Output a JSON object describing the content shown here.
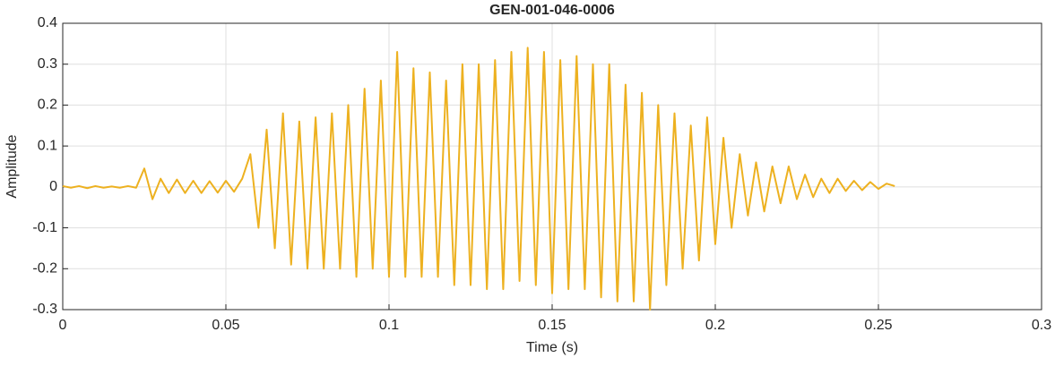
{
  "chart_data": {
    "type": "line",
    "title": "GEN-001-046-0006",
    "x_label": "Time (s)",
    "y_label": "Amplitude",
    "x": [
      0,
      0.0025,
      0.005,
      0.0075,
      0.01,
      0.0125,
      0.015,
      0.0175,
      0.02,
      0.0225,
      0.025,
      0.0275,
      0.03,
      0.0325,
      0.035,
      0.0375,
      0.04,
      0.0425,
      0.045,
      0.0475,
      0.05,
      0.0525,
      0.055,
      0.0575,
      0.06,
      0.0625,
      0.065,
      0.0675,
      0.07,
      0.0725,
      0.075,
      0.0775,
      0.08,
      0.0825,
      0.085,
      0.0875,
      0.09,
      0.0925,
      0.095,
      0.0975,
      0.1,
      0.1025,
      0.105,
      0.1075,
      0.11,
      0.1125,
      0.115,
      0.1175,
      0.12,
      0.1225,
      0.125,
      0.1275,
      0.13,
      0.1325,
      0.135,
      0.1375,
      0.14,
      0.1425,
      0.145,
      0.1475,
      0.15,
      0.1525,
      0.155,
      0.1575,
      0.16,
      0.1625,
      0.165,
      0.1675,
      0.17,
      0.1725,
      0.175,
      0.1775,
      0.18,
      0.1825,
      0.185,
      0.1875,
      0.19,
      0.1925,
      0.195,
      0.1975,
      0.2,
      0.2025,
      0.205,
      0.2075,
      0.21,
      0.2125,
      0.215,
      0.2175,
      0.22,
      0.2225,
      0.225,
      0.2275,
      0.23,
      0.2325,
      0.235,
      0.2375,
      0.24,
      0.2425,
      0.245,
      0.2475,
      0.25,
      0.2525,
      0.255
    ],
    "series": [
      {
        "color": "#EDB120",
        "values": [
          0.002,
          -0.002,
          0.002,
          -0.003,
          0.002,
          -0.002,
          0.001,
          -0.002,
          0.002,
          -0.002,
          0.045,
          -0.03,
          0.02,
          -0.015,
          0.018,
          -0.015,
          0.015,
          -0.015,
          0.014,
          -0.014,
          0.015,
          -0.012,
          0.02,
          0.08,
          -0.1,
          0.14,
          -0.15,
          0.18,
          -0.19,
          0.16,
          -0.2,
          0.17,
          -0.2,
          0.18,
          -0.2,
          0.2,
          -0.22,
          0.24,
          -0.2,
          0.26,
          -0.22,
          0.33,
          -0.22,
          0.29,
          -0.22,
          0.28,
          -0.22,
          0.26,
          -0.24,
          0.3,
          -0.24,
          0.3,
          -0.25,
          0.31,
          -0.25,
          0.33,
          -0.23,
          0.34,
          -0.24,
          0.33,
          -0.26,
          0.31,
          -0.25,
          0.32,
          -0.25,
          0.3,
          -0.27,
          0.3,
          -0.28,
          0.25,
          -0.28,
          0.23,
          -0.3,
          0.2,
          -0.24,
          0.18,
          -0.2,
          0.15,
          -0.18,
          0.17,
          -0.14,
          0.12,
          -0.1,
          0.08,
          -0.07,
          0.06,
          -0.06,
          0.05,
          -0.04,
          0.05,
          -0.03,
          0.03,
          -0.025,
          0.02,
          -0.015,
          0.02,
          -0.01,
          0.015,
          -0.008,
          0.012,
          -0.005,
          0.008,
          0.002
        ]
      }
    ],
    "xlim": [
      0,
      0.3
    ],
    "xticks": [
      0,
      0.05,
      0.1,
      0.15,
      0.2,
      0.25,
      0.3
    ],
    "ylim": [
      -0.3,
      0.4
    ],
    "yticks": [
      -0.3,
      -0.2,
      -0.1,
      0,
      0.1,
      0.2,
      0.3,
      0.4
    ],
    "grid": true
  }
}
